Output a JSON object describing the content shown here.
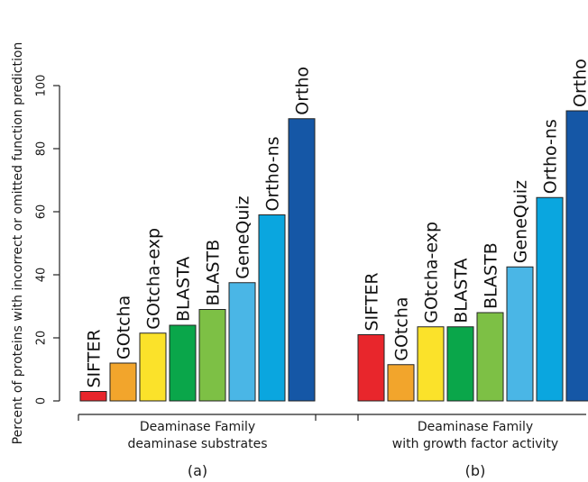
{
  "chart_data": {
    "type": "bar",
    "ylabel": "Percent of proteins with incorrect or omitted function prediction",
    "ylim": [
      0,
      100
    ],
    "yticks": [
      0,
      20,
      40,
      60,
      80,
      100
    ],
    "grid": false,
    "legend": "none",
    "panels": [
      {
        "group_label_line1": "Deaminase Family",
        "group_label_line2": "deaminase substrates",
        "panel_label": "(a)",
        "categories": [
          "SIFTER",
          "GOtcha",
          "GOtcha-exp",
          "BLASTA",
          "BLASTB",
          "GeneQuiz",
          "Ortho-ns",
          "Ortho"
        ],
        "values": [
          3,
          12,
          21.5,
          24,
          29,
          37.5,
          59,
          89.5
        ]
      },
      {
        "group_label_line1": "Deaminase Family",
        "group_label_line2": "with growth factor activity",
        "panel_label": "(b)",
        "categories": [
          "SIFTER",
          "GOtcha",
          "GOtcha-exp",
          "BLASTA",
          "BLASTB",
          "GeneQuiz",
          "Ortho-ns",
          "Ortho"
        ],
        "values": [
          21,
          11.5,
          23.5,
          23.5,
          28,
          42.5,
          64.5,
          92
        ]
      }
    ],
    "colors": {
      "SIFTER": "#e8262c",
      "GOtcha": "#f2a52c",
      "GOtcha-exp": "#fbe22a",
      "BLASTA": "#0aa64a",
      "BLASTB": "#7dc045",
      "GeneQuiz": "#4ab6e6",
      "Ortho-ns": "#0aa6df",
      "Ortho": "#1557a6"
    }
  }
}
